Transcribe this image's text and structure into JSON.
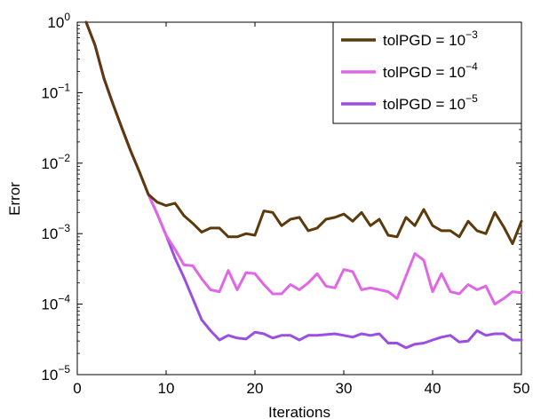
{
  "chart_data": {
    "type": "line",
    "title": "",
    "xlabel": "Iterations",
    "ylabel": "Error",
    "xlim": [
      0,
      50
    ],
    "ylim": [
      1e-05,
      1
    ],
    "yscale": "log",
    "grid": false,
    "legend_position": "top-right",
    "xticks": [
      0,
      10,
      20,
      30,
      40,
      50
    ],
    "xtick_labels": [
      "0",
      "10",
      "20",
      "30",
      "40",
      "50"
    ],
    "yticks": [
      {
        "value": 1,
        "exp": "0"
      },
      {
        "value": 0.1,
        "exp": "−1"
      },
      {
        "value": 0.01,
        "exp": "−2"
      },
      {
        "value": 0.001,
        "exp": "−3"
      },
      {
        "value": 0.0001,
        "exp": "−4"
      },
      {
        "value": 1e-05,
        "exp": "−5"
      }
    ],
    "ytick_base": "10",
    "series": [
      {
        "legend_prefix": "tolPGD = 10",
        "legend_exp": "−3",
        "color": "#5c3a0c",
        "x": [
          1,
          2,
          3,
          4,
          5,
          6,
          7,
          8,
          9,
          10,
          11,
          12,
          13,
          14,
          15,
          16,
          17,
          18,
          19,
          20,
          21,
          22,
          23,
          24,
          25,
          26,
          27,
          28,
          29,
          30,
          31,
          32,
          33,
          34,
          35,
          36,
          37,
          38,
          39,
          40,
          41,
          42,
          43,
          44,
          45,
          46,
          47,
          48,
          49,
          50
        ],
        "y": [
          1.0,
          0.47,
          0.16,
          0.07,
          0.032,
          0.015,
          0.0075,
          0.0036,
          0.0028,
          0.0025,
          0.0027,
          0.0018,
          0.0014,
          0.00105,
          0.0012,
          0.0012,
          0.0009,
          0.0009,
          0.001,
          0.00095,
          0.0021,
          0.002,
          0.0013,
          0.0016,
          0.0017,
          0.0011,
          0.0012,
          0.0016,
          0.0017,
          0.0019,
          0.0015,
          0.002,
          0.0013,
          0.0016,
          0.00095,
          0.0009,
          0.0017,
          0.0013,
          0.0022,
          0.0013,
          0.0011,
          0.0011,
          0.0009,
          0.0015,
          0.0011,
          0.001,
          0.002,
          0.00125,
          0.00072,
          0.0015
        ]
      },
      {
        "legend_prefix": "tolPGD = 10",
        "legend_exp": "−4",
        "color": "#e066e6",
        "x": [
          1,
          2,
          3,
          4,
          5,
          6,
          7,
          8,
          9,
          10,
          11,
          12,
          13,
          14,
          15,
          16,
          17,
          18,
          19,
          20,
          21,
          22,
          23,
          24,
          25,
          26,
          27,
          28,
          29,
          30,
          31,
          32,
          33,
          34,
          35,
          36,
          37,
          38,
          39,
          40,
          41,
          42,
          43,
          44,
          45,
          46,
          47,
          48,
          49,
          50
        ],
        "y": [
          1.0,
          0.47,
          0.16,
          0.07,
          0.032,
          0.015,
          0.0075,
          0.0036,
          0.0019,
          0.00095,
          0.0006,
          0.00036,
          0.00035,
          0.00023,
          0.00016,
          0.00015,
          0.0003,
          0.00016,
          0.00028,
          0.00027,
          0.00019,
          0.00014,
          0.00014,
          0.00019,
          0.00016,
          0.0002,
          0.00027,
          0.00018,
          0.00017,
          0.00031,
          0.00029,
          0.00016,
          0.00017,
          0.00016,
          0.00015,
          0.00012,
          0.00025,
          0.00052,
          0.00042,
          0.00015,
          0.00027,
          0.00015,
          0.00014,
          0.00019,
          0.00016,
          0.00018,
          0.0001,
          0.00012,
          0.00015,
          0.000145
        ]
      },
      {
        "legend_prefix": "tolPGD = 10",
        "legend_exp": "−5",
        "color": "#9b4fe0",
        "x": [
          1,
          2,
          3,
          4,
          5,
          6,
          7,
          8,
          9,
          10,
          11,
          12,
          13,
          14,
          15,
          16,
          17,
          18,
          19,
          20,
          21,
          22,
          23,
          24,
          25,
          26,
          27,
          28,
          29,
          30,
          31,
          32,
          33,
          34,
          35,
          36,
          37,
          38,
          39,
          40,
          41,
          42,
          43,
          44,
          45,
          46,
          47,
          48,
          49,
          50
        ],
        "y": [
          1.0,
          0.47,
          0.16,
          0.07,
          0.032,
          0.015,
          0.0075,
          0.0036,
          0.0019,
          0.00095,
          0.00045,
          0.00024,
          0.00012,
          6e-05,
          4.2e-05,
          3.1e-05,
          3.6e-05,
          3.3e-05,
          3.2e-05,
          4e-05,
          3.8e-05,
          3.3e-05,
          3.6e-05,
          3.6e-05,
          3.1e-05,
          3.6e-05,
          3.6e-05,
          3.7e-05,
          3.8e-05,
          3.6e-05,
          3.4e-05,
          3.8e-05,
          3.6e-05,
          3.8e-05,
          2.8e-05,
          2.8e-05,
          2.4e-05,
          2.7e-05,
          2.8e-05,
          3.1e-05,
          3.4e-05,
          3.6e-05,
          2.9e-05,
          3e-05,
          4.2e-05,
          3.6e-05,
          3.8e-05,
          3.8e-05,
          3.1e-05,
          3.1e-05
        ]
      }
    ]
  }
}
